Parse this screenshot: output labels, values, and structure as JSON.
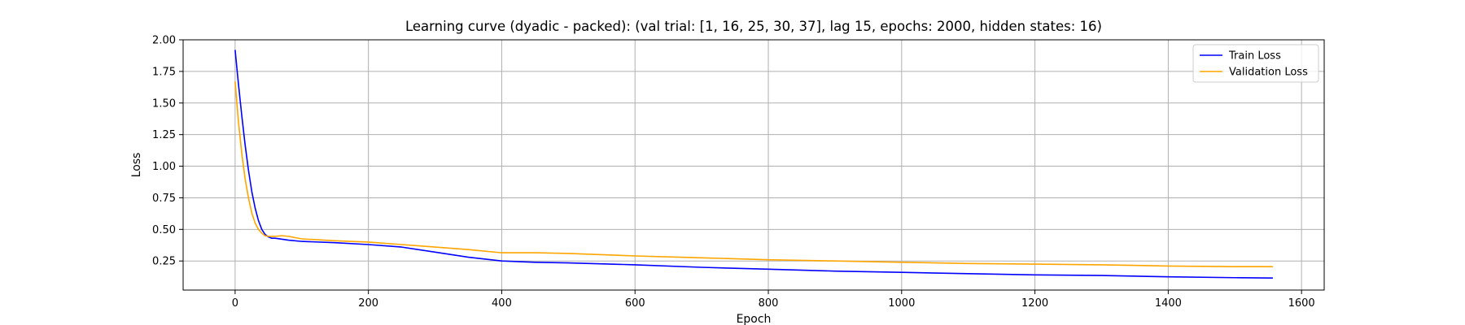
{
  "chart_data": {
    "type": "line",
    "title": "Learning curve (dyadic - packed): (val trial: [1, 16, 25, 30, 37], lag 15, epochs: 2000, hidden states: 16)",
    "xlabel": "Epoch",
    "ylabel": "Loss",
    "xlim": [
      -78,
      1634
    ],
    "ylim": [
      0.02,
      2.0
    ],
    "xticks": [
      0,
      200,
      400,
      600,
      800,
      1000,
      1200,
      1400,
      1600
    ],
    "xtick_labels": [
      "0",
      "200",
      "400",
      "600",
      "800",
      "1000",
      "1200",
      "1400",
      "1600"
    ],
    "yticks": [
      0.25,
      0.5,
      0.75,
      1.0,
      1.25,
      1.5,
      1.75,
      2.0
    ],
    "ytick_labels": [
      "0.25",
      "0.50",
      "0.75",
      "1.00",
      "1.25",
      "1.50",
      "1.75",
      "2.00"
    ],
    "grid": true,
    "legend_position": "top-right",
    "series": [
      {
        "name": "Train Loss",
        "color": "#0000ff",
        "x": [
          0,
          5,
          10,
          15,
          20,
          25,
          30,
          35,
          40,
          45,
          50,
          55,
          60,
          80,
          100,
          150,
          200,
          250,
          300,
          350,
          400,
          450,
          500,
          600,
          700,
          800,
          900,
          1000,
          1100,
          1200,
          1300,
          1400,
          1500,
          1557
        ],
        "y": [
          1.92,
          1.65,
          1.4,
          1.17,
          0.97,
          0.8,
          0.67,
          0.57,
          0.5,
          0.46,
          0.44,
          0.43,
          0.43,
          0.415,
          0.405,
          0.395,
          0.38,
          0.36,
          0.32,
          0.28,
          0.25,
          0.24,
          0.235,
          0.22,
          0.2,
          0.185,
          0.17,
          0.16,
          0.15,
          0.14,
          0.135,
          0.125,
          0.118,
          0.115
        ]
      },
      {
        "name": "Validation Loss",
        "color": "#ffa500",
        "x": [
          0,
          5,
          10,
          15,
          20,
          25,
          30,
          35,
          40,
          45,
          50,
          55,
          60,
          70,
          80,
          100,
          150,
          200,
          250,
          300,
          350,
          400,
          450,
          500,
          600,
          700,
          800,
          900,
          1000,
          1100,
          1200,
          1300,
          1400,
          1500,
          1557
        ],
        "y": [
          1.67,
          1.35,
          1.1,
          0.9,
          0.75,
          0.63,
          0.55,
          0.5,
          0.47,
          0.45,
          0.445,
          0.445,
          0.445,
          0.45,
          0.445,
          0.425,
          0.41,
          0.4,
          0.38,
          0.36,
          0.34,
          0.315,
          0.315,
          0.31,
          0.29,
          0.275,
          0.26,
          0.25,
          0.24,
          0.23,
          0.225,
          0.22,
          0.21,
          0.205,
          0.205
        ]
      }
    ]
  }
}
